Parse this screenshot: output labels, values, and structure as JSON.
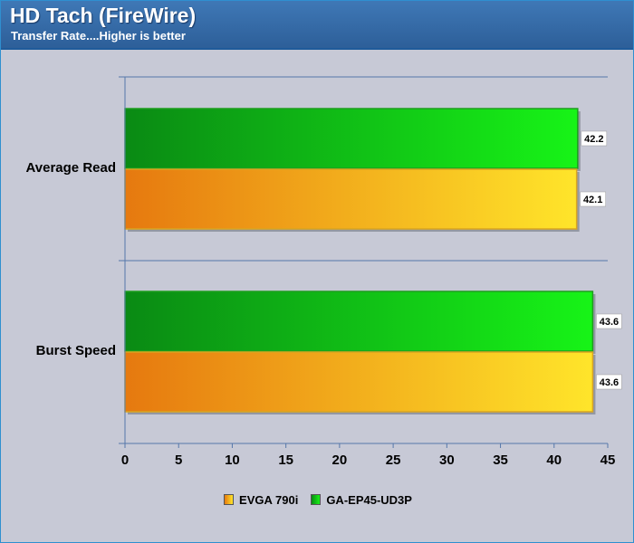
{
  "header": {
    "title": "HD Tach (FireWire)",
    "subtitle": "Transfer Rate....Higher is better"
  },
  "legend": {
    "items": [
      {
        "label": "EVGA 790i",
        "color": "#f0a018"
      },
      {
        "label": "GA-EP45-UD3P",
        "color": "#10c010"
      }
    ]
  },
  "colors": {
    "background": "#c7c9d6",
    "header": "#2d5f99",
    "gridline": "#5577aa",
    "orange_start": "#e6790f",
    "orange_end": "#ffe52a",
    "green_start": "#0a8a14",
    "green_end": "#17f417"
  },
  "chart_data": {
    "type": "bar",
    "orientation": "horizontal",
    "title": "HD Tach (FireWire)",
    "subtitle": "Transfer Rate....Higher is better",
    "categories": [
      "Average Read",
      "Burst Speed"
    ],
    "series": [
      {
        "name": "GA-EP45-UD3P",
        "values": [
          42.2,
          43.6
        ]
      },
      {
        "name": "EVGA 790i",
        "values": [
          42.1,
          43.6
        ]
      }
    ],
    "xlim": [
      0,
      45
    ],
    "xticks": [
      "0",
      "5",
      "10",
      "15",
      "20",
      "25",
      "30",
      "35",
      "40",
      "45"
    ],
    "value_labels": [
      [
        "42.2",
        "43.6"
      ],
      [
        "42.1",
        "43.6"
      ]
    ],
    "grid": true,
    "legend_position": "bottom"
  }
}
